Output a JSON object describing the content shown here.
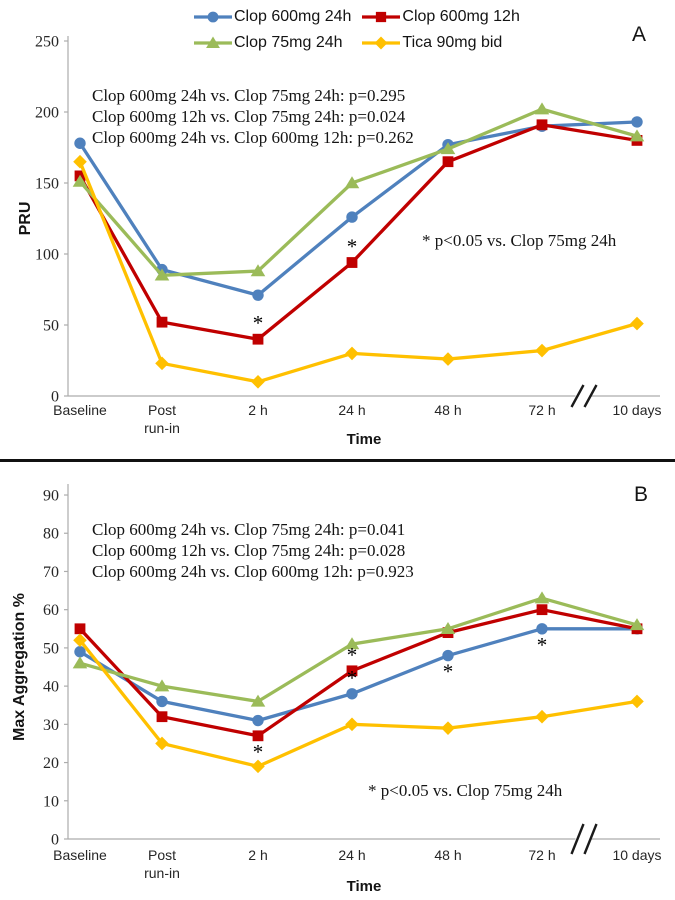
{
  "legend": {
    "items": [
      {
        "label": "Clop 600mg 24h",
        "marker": "circle",
        "color": "#4F81BD"
      },
      {
        "label": "Clop 600mg 12h",
        "marker": "square",
        "color": "#C00000"
      },
      {
        "label": "Clop 75mg 24h",
        "marker": "triangle",
        "color": "#9BBB59"
      },
      {
        "label": "Tica 90mg bid",
        "marker": "diamond",
        "color": "#FFC000"
      }
    ]
  },
  "chart_data": [
    {
      "type": "line",
      "panel_label": "A",
      "ylabel": "PRU",
      "xlabel": "Time",
      "ylim": [
        0,
        250
      ],
      "ytick_step": 50,
      "grid": false,
      "legend_position": "top-center",
      "categories": [
        "Baseline",
        "Post\nrun-in",
        "2 h",
        "24 h",
        "48 h",
        "72 h",
        "10 days"
      ],
      "axis_break_after_category": "72 h",
      "series": [
        {
          "name": "Clop 600mg 24h",
          "color": "#4F81BD",
          "marker": "circle",
          "values": [
            178,
            89,
            71,
            126,
            177,
            190,
            193
          ]
        },
        {
          "name": "Clop 600mg 12h",
          "color": "#C00000",
          "marker": "square",
          "values": [
            155,
            52,
            40,
            94,
            165,
            191,
            180
          ]
        },
        {
          "name": "Clop 75mg 24h",
          "color": "#9BBB59",
          "marker": "triangle",
          "values": [
            151,
            85,
            88,
            150,
            174,
            202,
            183
          ]
        },
        {
          "name": "Tica 90mg bid",
          "color": "#FFC000",
          "marker": "diamond",
          "values": [
            165,
            23,
            10,
            30,
            26,
            32,
            51
          ]
        }
      ],
      "comparisons": [
        "Clop 600mg 24h vs. Clop 75mg 24h: p=0.295",
        "Clop 600mg 12h vs. Clop 75mg 24h: p=0.024",
        "Clop 600mg 24h vs. Clop 600mg 12h: p=0.262"
      ],
      "significance_note": "* p<0.05 vs. Clop 75mg 24h",
      "asterisks": [
        {
          "category": "2 h",
          "series": "Clop 600mg 12h",
          "position": "above"
        },
        {
          "category": "24 h",
          "series": "Clop 600mg 12h",
          "position": "above"
        }
      ]
    },
    {
      "type": "line",
      "panel_label": "B",
      "ylabel": "Max Aggregation %",
      "xlabel": "Time",
      "ylim": [
        0,
        90
      ],
      "ytick_step": 10,
      "grid": false,
      "categories": [
        "Baseline",
        "Post\nrun-in",
        "2 h",
        "24 h",
        "48 h",
        "72 h",
        "10 days"
      ],
      "axis_break_after_category": "72 h",
      "series": [
        {
          "name": "Clop 600mg 24h",
          "color": "#4F81BD",
          "marker": "circle",
          "values": [
            49,
            36,
            31,
            38,
            48,
            55,
            55
          ]
        },
        {
          "name": "Clop 600mg 12h",
          "color": "#C00000",
          "marker": "square",
          "values": [
            55,
            32,
            27,
            44,
            54,
            60,
            55
          ]
        },
        {
          "name": "Clop 75mg 24h",
          "color": "#9BBB59",
          "marker": "triangle",
          "values": [
            46,
            40,
            36,
            51,
            55,
            63,
            56
          ]
        },
        {
          "name": "Tica 90mg bid",
          "color": "#FFC000",
          "marker": "diamond",
          "values": [
            52,
            25,
            19,
            30,
            29,
            32,
            36
          ]
        }
      ],
      "comparisons": [
        "Clop 600mg 24h vs. Clop 75mg 24h: p=0.041",
        "Clop 600mg 12h vs. Clop 75mg 24h: p=0.028",
        "Clop 600mg 24h vs. Clop 600mg 12h: p=0.923"
      ],
      "significance_note": "* p<0.05 vs. Clop 75mg 24h",
      "asterisks": [
        {
          "category": "2 h",
          "series": "Clop 600mg 12h",
          "position": "below"
        },
        {
          "category": "24 h",
          "series": "Clop 600mg 12h",
          "position": "above"
        },
        {
          "category": "24 h",
          "series": "Clop 600mg 24h",
          "position": "above"
        },
        {
          "category": "48 h",
          "series": "Clop 600mg 24h",
          "position": "below"
        },
        {
          "category": "72 h",
          "series": "Clop 600mg 24h",
          "position": "below"
        }
      ]
    }
  ]
}
